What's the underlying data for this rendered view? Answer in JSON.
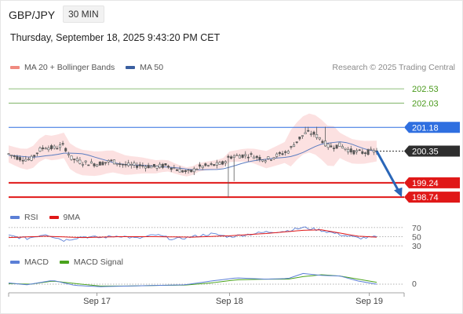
{
  "header": {
    "symbol": "GBP/JPY",
    "timeframe": "30 MIN",
    "datetime": "Thursday, September 18, 2025 9:43:20 PM CET"
  },
  "legends": {
    "price": [
      {
        "label": "MA 20 + Bollinger Bands",
        "color": "#f08a80"
      },
      {
        "label": "MA 50",
        "color": "#3a5fa0"
      }
    ],
    "rsi": [
      {
        "label": "RSI",
        "color": "#5b7fd6"
      },
      {
        "label": "9MA",
        "color": "#e01818"
      }
    ],
    "macd": [
      {
        "label": "MACD",
        "color": "#5b7fd6"
      },
      {
        "label": "MACD Signal",
        "color": "#4aa31c"
      }
    ]
  },
  "credit": "Research © 2025 Trading Central",
  "colors": {
    "target": "#6aa84f",
    "pivot": "#2f6fe0",
    "support": "#e01818",
    "last": "#333333",
    "candle": "#5a5a5a",
    "band": "#fbdada",
    "arrow": "#2a66b8"
  },
  "chart_data": {
    "type": "candlestick",
    "price_range": [
      198.55,
      203.0
    ],
    "levels": [
      {
        "value": "202.53",
        "kind": "target"
      },
      {
        "value": "202.03",
        "kind": "target"
      },
      {
        "value": "201.18",
        "kind": "pivot"
      },
      {
        "value": "200.35",
        "kind": "last"
      },
      {
        "value": "199.24",
        "kind": "support"
      },
      {
        "value": "198.74",
        "kind": "support"
      }
    ],
    "x_labels": [
      "Sep 17",
      "Sep 18",
      "Sep 19"
    ],
    "x_label_positions": [
      0.24,
      0.6,
      0.98
    ],
    "close_path": [
      [
        0,
        200.25
      ],
      [
        0.03,
        200.1
      ],
      [
        0.06,
        200.05
      ],
      [
        0.08,
        200.35
      ],
      [
        0.1,
        200.5
      ],
      [
        0.12,
        200.45
      ],
      [
        0.15,
        200.55
      ],
      [
        0.17,
        200.1
      ],
      [
        0.2,
        199.95
      ],
      [
        0.24,
        199.9
      ],
      [
        0.28,
        200.0
      ],
      [
        0.32,
        199.85
      ],
      [
        0.36,
        199.85
      ],
      [
        0.4,
        199.8
      ],
      [
        0.43,
        199.85
      ],
      [
        0.46,
        199.7
      ],
      [
        0.49,
        199.6
      ],
      [
        0.52,
        199.8
      ],
      [
        0.55,
        199.85
      ],
      [
        0.58,
        199.9
      ],
      [
        0.6,
        200.15
      ],
      [
        0.63,
        200.2
      ],
      [
        0.66,
        200.2
      ],
      [
        0.7,
        200.05
      ],
      [
        0.73,
        200.2
      ],
      [
        0.76,
        200.35
      ],
      [
        0.79,
        200.8
      ],
      [
        0.81,
        201.0
      ],
      [
        0.83,
        200.95
      ],
      [
        0.85,
        200.75
      ],
      [
        0.87,
        200.5
      ],
      [
        0.9,
        200.55
      ],
      [
        0.93,
        200.35
      ],
      [
        0.96,
        200.3
      ],
      [
        1.0,
        200.35
      ]
    ],
    "spike_low": [
      [
        0.594,
        198.74
      ],
      [
        0.61,
        199.3
      ]
    ],
    "spike_high": [
      [
        0.81,
        201.2
      ],
      [
        0.835,
        201.2
      ],
      [
        0.86,
        201.2
      ]
    ],
    "rsi": {
      "levels": [
        "70",
        "50",
        "30"
      ],
      "series": [
        [
          0,
          52
        ],
        [
          0.05,
          46
        ],
        [
          0.1,
          56
        ],
        [
          0.15,
          42
        ],
        [
          0.2,
          50
        ],
        [
          0.25,
          48
        ],
        [
          0.3,
          52
        ],
        [
          0.35,
          46
        ],
        [
          0.4,
          54
        ],
        [
          0.45,
          44
        ],
        [
          0.5,
          50
        ],
        [
          0.55,
          56
        ],
        [
          0.6,
          50
        ],
        [
          0.65,
          55
        ],
        [
          0.7,
          60
        ],
        [
          0.75,
          62
        ],
        [
          0.8,
          70
        ],
        [
          0.85,
          64
        ],
        [
          0.9,
          55
        ],
        [
          0.95,
          47
        ],
        [
          1.0,
          49
        ]
      ],
      "ma": [
        [
          0,
          48
        ],
        [
          0.1,
          51
        ],
        [
          0.2,
          48
        ],
        [
          0.3,
          50
        ],
        [
          0.4,
          50
        ],
        [
          0.5,
          49
        ],
        [
          0.6,
          52
        ],
        [
          0.7,
          57
        ],
        [
          0.8,
          64
        ],
        [
          0.85,
          65
        ],
        [
          0.9,
          58
        ],
        [
          0.95,
          51
        ],
        [
          1.0,
          49
        ]
      ]
    },
    "macd": {
      "zero_label": "0",
      "macd": [
        [
          0,
          0.02
        ],
        [
          0.05,
          -0.01
        ],
        [
          0.12,
          0.06
        ],
        [
          0.18,
          -0.02
        ],
        [
          0.25,
          -0.04
        ],
        [
          0.32,
          -0.03
        ],
        [
          0.4,
          -0.02
        ],
        [
          0.48,
          -0.01
        ],
        [
          0.55,
          0.05
        ],
        [
          0.62,
          0.1
        ],
        [
          0.7,
          0.08
        ],
        [
          0.76,
          0.09
        ],
        [
          0.8,
          0.17
        ],
        [
          0.85,
          0.14
        ],
        [
          0.9,
          0.13
        ],
        [
          0.95,
          0.05
        ],
        [
          1.0,
          0.0
        ]
      ],
      "signal": [
        [
          0,
          0.01
        ],
        [
          0.06,
          0.0
        ],
        [
          0.12,
          0.05
        ],
        [
          0.18,
          0.01
        ],
        [
          0.25,
          -0.03
        ],
        [
          0.32,
          -0.03
        ],
        [
          0.4,
          -0.02
        ],
        [
          0.48,
          -0.015
        ],
        [
          0.55,
          0.02
        ],
        [
          0.62,
          0.07
        ],
        [
          0.7,
          0.08
        ],
        [
          0.76,
          0.08
        ],
        [
          0.8,
          0.12
        ],
        [
          0.85,
          0.15
        ],
        [
          0.9,
          0.13
        ],
        [
          0.95,
          0.08
        ],
        [
          1.0,
          0.03
        ]
      ]
    }
  }
}
